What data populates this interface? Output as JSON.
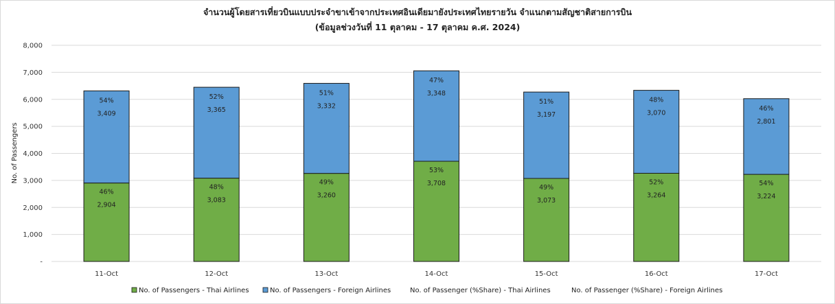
{
  "chart_data": {
    "type": "bar",
    "stacked": true,
    "title": "จำนวนผู้โดยสารเที่ยวบินแบบประจำขาเข้าจากประเทศอินเดียมายังประเทศไทยรายวัน  จำแนกตามสัญชาติสายการบิน",
    "subtitle": "(ข้อมูลช่วงวันที่ 11 ตุลาคม - 17 ตุลาคม ค.ศ. 2024)",
    "ylabel": "No. of Passengers",
    "xlabel": "",
    "ylim": [
      0,
      8000
    ],
    "yticks": [
      "-",
      "1,000",
      "2,000",
      "3,000",
      "4,000",
      "5,000",
      "6,000",
      "7,000",
      "8,000"
    ],
    "grid": true,
    "legend_position": "bottom",
    "categories": [
      "11-Oct",
      "12-Oct",
      "13-Oct",
      "14-Oct",
      "15-Oct",
      "16-Oct",
      "17-Oct"
    ],
    "series": [
      {
        "name": "No. of Passengers - Thai Airlines",
        "color": "#70ad47",
        "values": [
          2904,
          3083,
          3260,
          3708,
          3073,
          3264,
          3224
        ],
        "value_labels": [
          "2,904",
          "3,083",
          "3,260",
          "3,708",
          "3,073",
          "3,264",
          "3,224"
        ],
        "share_labels": [
          "46%",
          "48%",
          "49%",
          "53%",
          "49%",
          "52%",
          "54%"
        ]
      },
      {
        "name": "No. of Passengers - Foreign Airlines",
        "color": "#5b9bd5",
        "values": [
          3409,
          3365,
          3332,
          3348,
          3197,
          3070,
          2801
        ],
        "value_labels": [
          "3,409",
          "3,365",
          "3,332",
          "3,348",
          "3,197",
          "3,070",
          "2,801"
        ],
        "share_labels": [
          "54%",
          "52%",
          "51%",
          "47%",
          "51%",
          "48%",
          "46%"
        ]
      }
    ],
    "legend": [
      {
        "name": "No. of Passengers - Thai Airlines",
        "color": "#70ad47",
        "swatch": true
      },
      {
        "name": "No. of Passengers - Foreign Airlines",
        "color": "#5b9bd5",
        "swatch": true
      },
      {
        "name": "No. of Passenger (%Share) - Thai Airlines",
        "swatch": false
      },
      {
        "name": "No. of Passenger (%Share) - Foreign Airlines",
        "swatch": false
      }
    ]
  }
}
